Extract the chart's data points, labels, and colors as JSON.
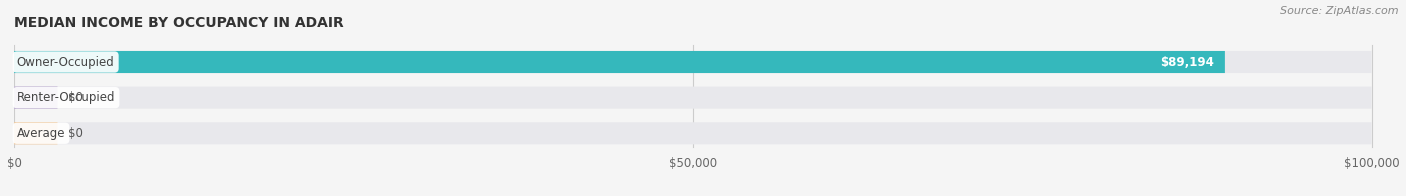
{
  "title": "MEDIAN INCOME BY OCCUPANCY IN ADAIR",
  "source": "Source: ZipAtlas.com",
  "categories": [
    "Owner-Occupied",
    "Renter-Occupied",
    "Average"
  ],
  "values": [
    89194,
    0,
    0
  ],
  "bar_colors": [
    "#35b8bc",
    "#b09cc8",
    "#f0c08a"
  ],
  "bar_bg_color": "#e8e8ec",
  "background_color": "#f5f5f5",
  "xlim": [
    0,
    100000
  ],
  "xticks": [
    0,
    50000,
    100000
  ],
  "xtick_labels": [
    "$0",
    "$50,000",
    "$100,000"
  ],
  "value_labels": [
    "$89,194",
    "$0",
    "$0"
  ],
  "figsize": [
    14.06,
    1.96
  ],
  "dpi": 100
}
